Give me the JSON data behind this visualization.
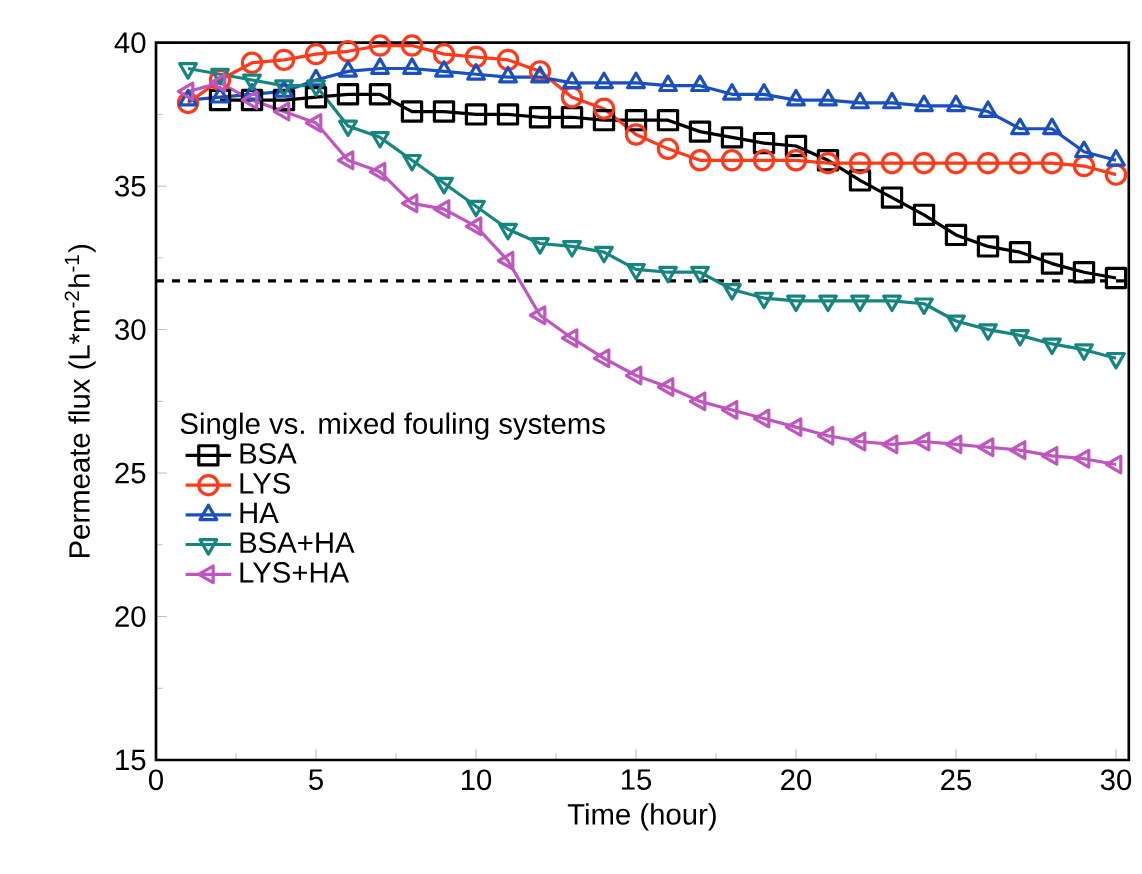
{
  "chart_data": {
    "type": "line",
    "xlabel": "Time (hour)",
    "ylabel": "Permeate flux (L*m$^{-2}$h$^{-1}$)",
    "legend_title": "Single vs. mixed fouling systems",
    "x": [
      1,
      2,
      3,
      4,
      5,
      6,
      7,
      8,
      9,
      10,
      11,
      12,
      13,
      14,
      15,
      16,
      17,
      18,
      19,
      20,
      21,
      22,
      23,
      24,
      25,
      26,
      27,
      28,
      29,
      30
    ],
    "xlim": [
      0,
      30.4
    ],
    "xticks": [
      0,
      5,
      10,
      15,
      20,
      25,
      30
    ],
    "ylim": [
      15,
      40
    ],
    "yticks": [
      15,
      20,
      25,
      30,
      35,
      40
    ],
    "legend": "left",
    "line_style": "solid",
    "series": [
      {
        "name": "BSA",
        "color": "#000000",
        "marker": "square",
        "values": [
          null,
          38.0,
          38.0,
          38.0,
          38.1,
          38.2,
          38.2,
          37.6,
          37.6,
          37.5,
          37.5,
          37.4,
          37.4,
          37.3,
          37.3,
          37.3,
          36.9,
          36.7,
          36.5,
          36.4,
          35.9,
          35.2,
          34.6,
          34.0,
          33.3,
          32.9,
          32.7,
          32.3,
          32.0,
          31.8
        ]
      },
      {
        "name": "LYS",
        "color": "#ff3a1a",
        "marker": "circle",
        "values": [
          37.9,
          38.7,
          39.3,
          39.4,
          39.6,
          39.7,
          39.9,
          39.9,
          39.6,
          39.5,
          39.4,
          39.0,
          38.1,
          37.7,
          36.8,
          36.3,
          35.9,
          35.9,
          35.9,
          35.9,
          35.8,
          35.8,
          35.8,
          35.8,
          35.8,
          35.8,
          35.8,
          35.8,
          35.7,
          35.4
        ]
      },
      {
        "name": "HA",
        "color": "#1a4fc0",
        "marker": "triangle",
        "values": [
          38.0,
          38.1,
          38.2,
          38.3,
          38.7,
          39.0,
          39.1,
          39.1,
          39.0,
          38.9,
          38.8,
          38.8,
          38.6,
          38.6,
          38.6,
          38.5,
          38.5,
          38.2,
          38.2,
          38.0,
          38.0,
          37.9,
          37.9,
          37.8,
          37.8,
          37.6,
          37.0,
          37.0,
          36.2,
          35.9
        ]
      },
      {
        "name": "BSA+HA",
        "color": "#17857f",
        "marker": "triangle-down",
        "values": [
          39.1,
          38.9,
          38.7,
          38.5,
          38.5,
          37.1,
          36.7,
          35.9,
          35.1,
          34.3,
          33.5,
          33.0,
          32.9,
          32.7,
          32.1,
          32.0,
          32.0,
          31.4,
          31.1,
          31.0,
          31.0,
          31.0,
          31.0,
          30.9,
          30.3,
          30.0,
          29.8,
          29.5,
          29.3,
          29.0
        ]
      },
      {
        "name": "LYS+HA",
        "color": "#c054c0",
        "marker": "triangle-left",
        "values": [
          38.3,
          38.6,
          38.0,
          37.6,
          37.2,
          35.9,
          35.5,
          34.4,
          34.2,
          33.6,
          32.4,
          30.5,
          29.7,
          29.0,
          28.4,
          28.0,
          27.5,
          27.2,
          26.9,
          26.6,
          26.3,
          26.1,
          26.0,
          26.1,
          26.0,
          25.9,
          25.8,
          25.6,
          25.5,
          25.3
        ]
      }
    ],
    "ref_lines": [
      {
        "axis": "y",
        "value": 31.7,
        "color": "#000000",
        "line_style": "dashed"
      }
    ]
  }
}
